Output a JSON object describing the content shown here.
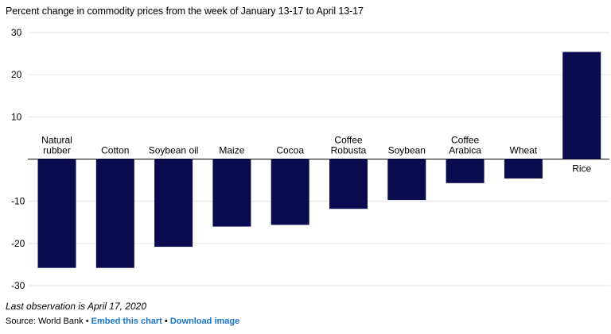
{
  "chart_data": {
    "type": "bar",
    "title": "Percent change in commodity prices from the week of January 13-17 to April 13-17",
    "categories": [
      [
        "Natural",
        "rubber"
      ],
      [
        "Cotton"
      ],
      [
        "Soybean oil"
      ],
      [
        "Maize"
      ],
      [
        "Cocoa"
      ],
      [
        "Coffee",
        "Robusta"
      ],
      [
        "Soybean"
      ],
      [
        "Coffee",
        "Arabica"
      ],
      [
        "Wheat"
      ],
      [
        "Rice"
      ]
    ],
    "values": [
      -25.8,
      -25.8,
      -20.8,
      -16.0,
      -15.6,
      -11.8,
      -9.7,
      -5.7,
      -4.6,
      25.4
    ],
    "ylim": [
      -30,
      30
    ],
    "yticks": [
      30,
      20,
      10,
      -10,
      -20,
      -30
    ],
    "grid": true,
    "bar_color": "#0a0a4e",
    "grid_color": "#e6e6e6"
  },
  "note": "Last observation is April 17, 2020",
  "footer": {
    "source": "Source: World Bank",
    "sep": "•",
    "embed": "Embed this chart",
    "download": "Download image"
  }
}
